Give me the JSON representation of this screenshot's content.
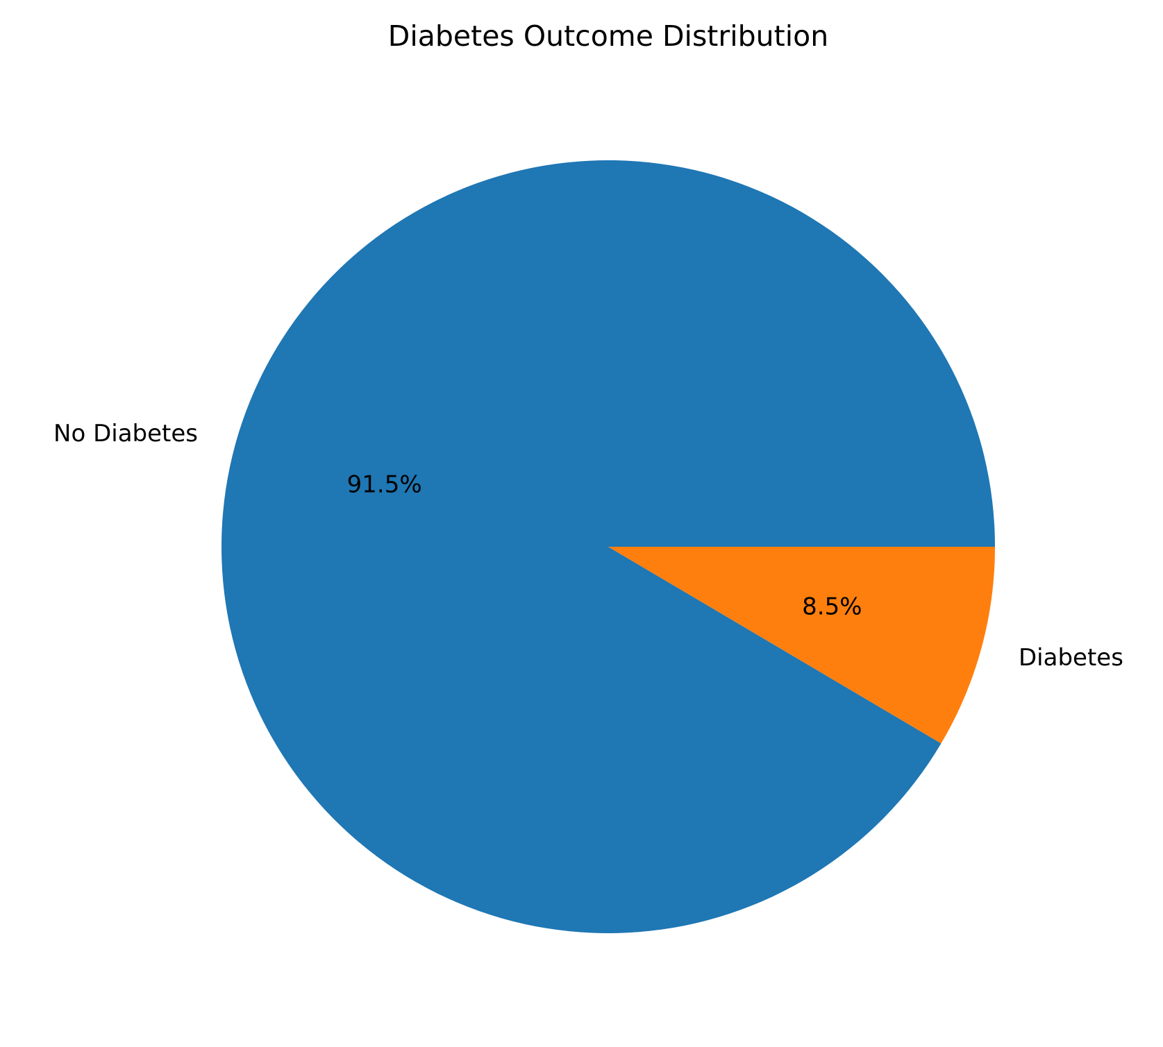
{
  "chart_data": {
    "type": "pie",
    "title": "Diabetes Outcome Distribution",
    "start_angle_deg": 0,
    "direction": "counterclockwise",
    "slices": [
      {
        "label": "No Diabetes",
        "value": 91.5,
        "pct_label": "91.5%",
        "color": "#1f77b4"
      },
      {
        "label": "Diabetes",
        "value": 8.5,
        "pct_label": "8.5%",
        "color": "#ff7f0e"
      }
    ],
    "legend": "none"
  }
}
